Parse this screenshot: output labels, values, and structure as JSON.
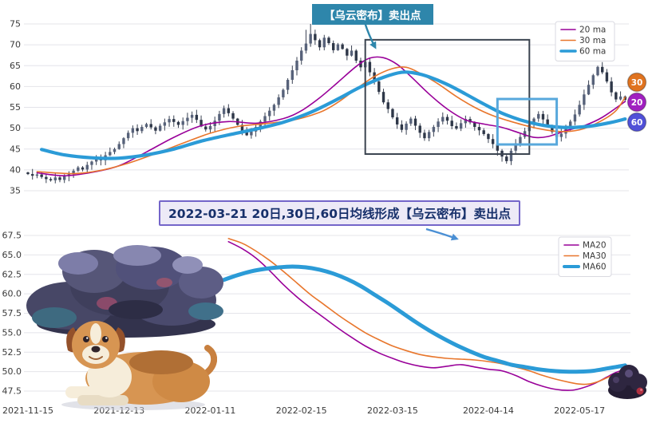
{
  "annotations": {
    "sell_point": "【乌云密布】卖出点",
    "detail": "2022-03-21 20日,30日,60日均线形成【乌云密布】卖出点"
  },
  "colors": {
    "ma20": "#990099",
    "ma30": "#e8762c",
    "ma60": "#2b9bd7",
    "callout_bg": "#2e86ab",
    "detail_border": "#7465c9",
    "detail_bg": "#edeaf7",
    "detail_text": "#17306b",
    "arrow": "#4a8fd4",
    "dark_box": "#3b4450",
    "blue_box": "#58a8dc",
    "candle_up": "#57627a",
    "candle_down": "#2e3748",
    "candle_wick": "#3a4252",
    "grid": "#e4e4ea",
    "tick_text": "#3a3a3a",
    "legend_border": "#d9d9e0"
  },
  "icons": [
    {
      "name": "storm-cloud-illustration"
    },
    {
      "name": "dog-illustration"
    },
    {
      "name": "dark-cloud-icon"
    },
    {
      "name": "sell-point-arrow"
    },
    {
      "name": "detail-arrow"
    }
  ],
  "chart_data": [
    {
      "type": "candlestick",
      "title": "",
      "ylim": [
        35,
        75
      ],
      "y_ticks": [
        75,
        70,
        65,
        60,
        55,
        50,
        45,
        40,
        35
      ],
      "y_tick_decimals": 0,
      "x_tick_days": [
        0,
        20,
        40,
        60,
        80,
        101,
        121
      ],
      "x_tick_labels": [
        "2021-11-15",
        "2021-12-13",
        "2022-01-11",
        "2022-02-15",
        "2022-03-15",
        "2022-04-14",
        "2022-05-17"
      ],
      "x_labels_visible": false,
      "n_days": 132,
      "closes": [
        39.0,
        38.6,
        38.9,
        38.3,
        37.8,
        37.5,
        38.2,
        37.6,
        38.5,
        39.2,
        39.8,
        40.6,
        40.1,
        41.2,
        42.0,
        42.8,
        42.3,
        43.5,
        44.3,
        45.0,
        46.2,
        47.6,
        48.9,
        50.0,
        49.3,
        50.3,
        51.0,
        50.2,
        49.4,
        50.6,
        51.4,
        52.2,
        51.5,
        50.8,
        51.7,
        52.5,
        53.2,
        52.0,
        50.4,
        49.7,
        50.5,
        51.8,
        53.4,
        54.8,
        53.6,
        52.3,
        50.8,
        49.4,
        48.3,
        49.2,
        50.3,
        51.6,
        52.9,
        54.2,
        55.6,
        57.4,
        59.2,
        61.6,
        63.9,
        66.2,
        68.6,
        70.3,
        72.6,
        71.1,
        69.4,
        71.7,
        70.4,
        68.7,
        70.1,
        69.0,
        67.4,
        68.6,
        66.2,
        64.6,
        65.9,
        63.4,
        61.2,
        58.7,
        56.2,
        54.6,
        52.6,
        50.9,
        49.6,
        51.1,
        52.3,
        50.6,
        48.9,
        47.6,
        49.1,
        50.3,
        51.6,
        52.7,
        51.8,
        50.5,
        49.9,
        51.2,
        52.2,
        51.4,
        50.3,
        49.5,
        48.6,
        47.4,
        46.2,
        44.6,
        43.2,
        42.1,
        44.6,
        46.4,
        47.9,
        49.3,
        50.9,
        52.3,
        53.4,
        52.1,
        50.6,
        49.1,
        47.9,
        48.7,
        50.1,
        51.6,
        53.3,
        55.6,
        58.1,
        60.4,
        62.7,
        64.7,
        63.4,
        61.2,
        58.6,
        56.9,
        57.6,
        56.8
      ],
      "wick_overrides": [
        {
          "day": 61,
          "high": 73.6
        },
        {
          "day": 62,
          "high": 75.0
        },
        {
          "day": 105,
          "low": 41.5
        }
      ],
      "series": [
        {
          "name": "20 ma",
          "color_key": "ma20",
          "width": 1.6,
          "points": [
            [
              2,
              39.3
            ],
            [
              8,
              38.6
            ],
            [
              14,
              39.4
            ],
            [
              20,
              41.0
            ],
            [
              26,
              44.3
            ],
            [
              32,
              47.8
            ],
            [
              38,
              50.6
            ],
            [
              44,
              51.6
            ],
            [
              50,
              51.2
            ],
            [
              56,
              52.3
            ],
            [
              60,
              54.2
            ],
            [
              64,
              57.3
            ],
            [
              68,
              61.0
            ],
            [
              72,
              64.8
            ],
            [
              75,
              66.8
            ],
            [
              78,
              66.9
            ],
            [
              81,
              65.3
            ],
            [
              84,
              62.4
            ],
            [
              88,
              58.2
            ],
            [
              92,
              54.6
            ],
            [
              96,
              52.0
            ],
            [
              100,
              51.0
            ],
            [
              104,
              50.2
            ],
            [
              108,
              48.8
            ],
            [
              111,
              47.8
            ],
            [
              114,
              48.0
            ],
            [
              118,
              49.4
            ],
            [
              122,
              50.6
            ],
            [
              126,
              52.6
            ],
            [
              131,
              56.4
            ]
          ]
        },
        {
          "name": "30 ma",
          "color_key": "ma30",
          "width": 1.6,
          "points": [
            [
              2,
              39.6
            ],
            [
              10,
              39.1
            ],
            [
              16,
              39.9
            ],
            [
              22,
              41.6
            ],
            [
              28,
              43.9
            ],
            [
              34,
              46.4
            ],
            [
              40,
              48.8
            ],
            [
              46,
              50.4
            ],
            [
              52,
              51.1
            ],
            [
              58,
              51.9
            ],
            [
              64,
              53.8
            ],
            [
              68,
              56.2
            ],
            [
              72,
              59.4
            ],
            [
              76,
              62.4
            ],
            [
              80,
              64.3
            ],
            [
              83,
              64.6
            ],
            [
              86,
              63.2
            ],
            [
              90,
              60.6
            ],
            [
              94,
              57.6
            ],
            [
              98,
              55.0
            ],
            [
              102,
              53.0
            ],
            [
              106,
              51.6
            ],
            [
              110,
              50.4
            ],
            [
              114,
              49.5
            ],
            [
              118,
              49.2
            ],
            [
              122,
              49.9
            ],
            [
              126,
              51.9
            ],
            [
              129,
              54.2
            ],
            [
              131,
              57.4
            ]
          ]
        },
        {
          "name": "60 ma",
          "color_key": "ma60",
          "width": 4.2,
          "points": [
            [
              3,
              44.9
            ],
            [
              8,
              43.6
            ],
            [
              14,
              42.9
            ],
            [
              20,
              42.8
            ],
            [
              26,
              43.6
            ],
            [
              32,
              45.0
            ],
            [
              38,
              46.9
            ],
            [
              44,
              48.4
            ],
            [
              50,
              49.8
            ],
            [
              56,
              51.4
            ],
            [
              62,
              53.8
            ],
            [
              68,
              57.0
            ],
            [
              73,
              59.9
            ],
            [
              78,
              62.2
            ],
            [
              82,
              63.4
            ],
            [
              85,
              63.2
            ],
            [
              88,
              62.3
            ],
            [
              92,
              60.5
            ],
            [
              96,
              58.2
            ],
            [
              100,
              55.8
            ],
            [
              104,
              53.6
            ],
            [
              108,
              52.0
            ],
            [
              112,
              50.9
            ],
            [
              116,
              50.3
            ],
            [
              120,
              50.2
            ],
            [
              124,
              50.6
            ],
            [
              128,
              51.4
            ],
            [
              131,
              52.2
            ]
          ]
        }
      ],
      "legend": {
        "position": "upper right",
        "items": [
          {
            "label": "20 ma",
            "color_key": "ma20",
            "width": 1.6
          },
          {
            "label": "30 ma",
            "color_key": "ma30",
            "width": 1.6
          },
          {
            "label": "60 ma",
            "color_key": "ma60",
            "width": 3.5
          }
        ]
      },
      "badges": [
        {
          "label": "30",
          "color": "#e0731f"
        },
        {
          "label": "20",
          "color": "#a020c0"
        },
        {
          "label": "60",
          "color": "#5050d8"
        }
      ],
      "highlight_boxes": [
        {
          "d0": 74,
          "d1": 110,
          "v0": 43.8,
          "v1": 71.2,
          "color_key": "dark_box",
          "width": 2
        },
        {
          "d0": 103,
          "d1": 116,
          "v0": 46.1,
          "v1": 57.0,
          "color_key": "blue_box",
          "width": 3
        }
      ],
      "grid": true
    },
    {
      "type": "line",
      "title": "",
      "ylim": [
        47.5,
        67.5
      ],
      "y_ticks": [
        67.5,
        65.0,
        62.5,
        60.0,
        57.5,
        55.0,
        52.5,
        50.0,
        47.5
      ],
      "y_tick_decimals": 1,
      "x_tick_days": [
        0,
        20,
        40,
        60,
        80,
        101,
        121
      ],
      "x_tick_labels": [
        "2021-11-15",
        "2021-12-13",
        "2022-01-11",
        "2022-02-15",
        "2022-03-15",
        "2022-04-14",
        "2022-05-17"
      ],
      "x_labels_visible": true,
      "series": [
        {
          "name": "MA20",
          "color_key": "ma20",
          "width": 1.6,
          "points": [
            [
              44,
              66.7
            ],
            [
              47,
              65.8
            ],
            [
              50,
              64.6
            ],
            [
              53,
              63.0
            ],
            [
              56,
              61.2
            ],
            [
              59,
              59.6
            ],
            [
              62,
              58.2
            ],
            [
              65,
              56.9
            ],
            [
              68,
              55.6
            ],
            [
              71,
              54.4
            ],
            [
              74,
              53.3
            ],
            [
              77,
              52.4
            ],
            [
              80,
              51.7
            ],
            [
              83,
              51.1
            ],
            [
              86,
              50.7
            ],
            [
              89,
              50.5
            ],
            [
              92,
              50.7
            ],
            [
              95,
              50.9
            ],
            [
              98,
              50.6
            ],
            [
              101,
              50.3
            ],
            [
              104,
              50.1
            ],
            [
              107,
              49.5
            ],
            [
              110,
              48.7
            ],
            [
              113,
              48.1
            ],
            [
              116,
              47.7
            ],
            [
              119,
              47.6
            ],
            [
              121,
              47.8
            ],
            [
              124,
              48.4
            ],
            [
              127,
              49.3
            ],
            [
              129,
              49.9
            ],
            [
              131,
              50.3
            ]
          ]
        },
        {
          "name": "MA30",
          "color_key": "ma30",
          "width": 1.6,
          "points": [
            [
              44,
              67.1
            ],
            [
              47,
              66.5
            ],
            [
              50,
              65.5
            ],
            [
              53,
              64.3
            ],
            [
              56,
              62.9
            ],
            [
              59,
              61.4
            ],
            [
              62,
              59.9
            ],
            [
              65,
              58.6
            ],
            [
              68,
              57.3
            ],
            [
              71,
              56.1
            ],
            [
              74,
              55.0
            ],
            [
              77,
              54.1
            ],
            [
              80,
              53.3
            ],
            [
              83,
              52.7
            ],
            [
              86,
              52.2
            ],
            [
              89,
              51.9
            ],
            [
              92,
              51.7
            ],
            [
              95,
              51.6
            ],
            [
              98,
              51.5
            ],
            [
              101,
              51.3
            ],
            [
              104,
              51.0
            ],
            [
              107,
              50.6
            ],
            [
              110,
              50.1
            ],
            [
              113,
              49.5
            ],
            [
              116,
              49.0
            ],
            [
              119,
              48.6
            ],
            [
              121,
              48.4
            ],
            [
              123,
              48.4
            ],
            [
              125,
              48.7
            ],
            [
              127,
              49.2
            ],
            [
              129,
              49.7
            ],
            [
              131,
              50.1
            ]
          ]
        },
        {
          "name": "MA60",
          "color_key": "ma60",
          "width": 5,
          "points": [
            [
              43,
              61.8
            ],
            [
              46,
              62.4
            ],
            [
              49,
              62.9
            ],
            [
              52,
              63.2
            ],
            [
              55,
              63.4
            ],
            [
              58,
              63.5
            ],
            [
              61,
              63.4
            ],
            [
              64,
              63.1
            ],
            [
              67,
              62.6
            ],
            [
              70,
              61.9
            ],
            [
              73,
              61.0
            ],
            [
              76,
              59.9
            ],
            [
              79,
              58.8
            ],
            [
              82,
              57.6
            ],
            [
              85,
              56.4
            ],
            [
              88,
              55.3
            ],
            [
              91,
              54.3
            ],
            [
              94,
              53.4
            ],
            [
              97,
              52.6
            ],
            [
              100,
              51.9
            ],
            [
              103,
              51.4
            ],
            [
              106,
              50.9
            ],
            [
              109,
              50.6
            ],
            [
              112,
              50.3
            ],
            [
              115,
              50.1
            ],
            [
              118,
              50.0
            ],
            [
              121,
              50.0
            ],
            [
              124,
              50.1
            ],
            [
              127,
              50.4
            ],
            [
              129,
              50.6
            ],
            [
              131,
              50.8
            ]
          ]
        }
      ],
      "legend": {
        "position": "upper right",
        "items": [
          {
            "label": "MA20",
            "color_key": "ma20",
            "width": 1.6
          },
          {
            "label": "MA30",
            "color_key": "ma30",
            "width": 1.6
          },
          {
            "label": "MA60",
            "color_key": "ma60",
            "width": 4
          }
        ]
      },
      "grid": true
    }
  ]
}
